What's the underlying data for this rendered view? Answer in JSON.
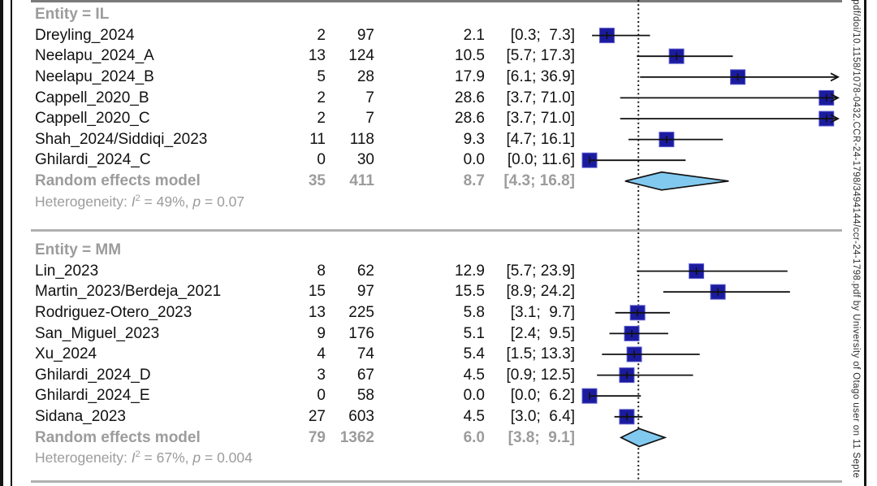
{
  "watermark": "-pdf/doi/10.1158/1078-0432.CCR-24-1798/3494144/ccr-24-1798.pdf by University of Otago user on 11 Septe",
  "colors": {
    "marker_square": "#1b1b9f",
    "marker_square_edge": "#5c5cd0",
    "diamond_fill": "#82c9f0",
    "diamond_stroke": "#111111",
    "ci_line": "#111111",
    "ref_line": "#1a1a1a",
    "study_text": "#111111",
    "muted_text": "#9c9c9c",
    "separator": "#b0b0b0",
    "separator_top": "#7a7a7a",
    "border": "#141414"
  },
  "chart_data": {
    "type": "scatter",
    "subtype": "forest-plot-of-proportions",
    "title": "",
    "xlabel": "",
    "xlim": [
      0,
      30
    ],
    "ref_line_x": 5.9,
    "grid": false,
    "legend": false,
    "columns": [
      "study",
      "events",
      "total",
      "estimate_percent",
      "95_percent_CI"
    ],
    "groups": [
      {
        "header": "Entity = IL",
        "studies": [
          {
            "name": "Dreyling_2024",
            "events": 2,
            "total": 97,
            "estimate": 2.1,
            "ci_low": 0.3,
            "ci_high": 7.3,
            "estimate_text": "2.1",
            "ci_text": "[0.3;  7.3]"
          },
          {
            "name": "Neelapu_2024_A",
            "events": 13,
            "total": 124,
            "estimate": 10.5,
            "ci_low": 5.7,
            "ci_high": 17.3,
            "estimate_text": "10.5",
            "ci_text": "[5.7; 17.3]"
          },
          {
            "name": "Neelapu_2024_B",
            "events": 5,
            "total": 28,
            "estimate": 17.9,
            "ci_low": 6.1,
            "ci_high": 36.9,
            "estimate_text": "17.9",
            "ci_text": "[6.1; 36.9]"
          },
          {
            "name": "Cappell_2020_B",
            "events": 2,
            "total": 7,
            "estimate": 28.6,
            "ci_low": 3.7,
            "ci_high": 71.0,
            "estimate_text": "28.6",
            "ci_text": "[3.7; 71.0]"
          },
          {
            "name": "Cappell_2020_C",
            "events": 2,
            "total": 7,
            "estimate": 28.6,
            "ci_low": 3.7,
            "ci_high": 71.0,
            "estimate_text": "28.6",
            "ci_text": "[3.7; 71.0]"
          },
          {
            "name": "Shah_2024/Siddiqi_2023",
            "events": 11,
            "total": 118,
            "estimate": 9.3,
            "ci_low": 4.7,
            "ci_high": 16.1,
            "estimate_text": "9.3",
            "ci_text": "[4.7; 16.1]"
          },
          {
            "name": "Ghilardi_2024_C",
            "events": 0,
            "total": 30,
            "estimate": 0.0,
            "ci_low": 0.0,
            "ci_high": 11.6,
            "estimate_text": "0.0",
            "ci_text": "[0.0; 11.6]"
          }
        ],
        "summary": {
          "name": "Random effects model",
          "events": 35,
          "total": 411,
          "estimate": 8.7,
          "ci_low": 4.3,
          "ci_high": 16.8,
          "estimate_text": "8.7",
          "ci_text": "[4.3; 16.8]"
        },
        "heterogeneity": [
          {
            "t": "text",
            "v": "Heterogeneity: "
          },
          {
            "t": "i",
            "v": "I"
          },
          {
            "t": "sup",
            "v": "2"
          },
          {
            "t": "text",
            "v": " = 49%, "
          },
          {
            "t": "i",
            "v": "p"
          },
          {
            "t": "text",
            "v": " = 0.07"
          }
        ]
      },
      {
        "header": "Entity = MM",
        "studies": [
          {
            "name": "Lin_2023",
            "events": 8,
            "total": 62,
            "estimate": 12.9,
            "ci_low": 5.7,
            "ci_high": 23.9,
            "estimate_text": "12.9",
            "ci_text": "[5.7; 23.9]"
          },
          {
            "name": "Martin_2023/Berdeja_2021",
            "events": 15,
            "total": 97,
            "estimate": 15.5,
            "ci_low": 8.9,
            "ci_high": 24.2,
            "estimate_text": "15.5",
            "ci_text": "[8.9; 24.2]"
          },
          {
            "name": "Rodriguez-Otero_2023",
            "events": 13,
            "total": 225,
            "estimate": 5.8,
            "ci_low": 3.1,
            "ci_high": 9.7,
            "estimate_text": "5.8",
            "ci_text": "[3.1;  9.7]"
          },
          {
            "name": "San_Miguel_2023",
            "events": 9,
            "total": 176,
            "estimate": 5.1,
            "ci_low": 2.4,
            "ci_high": 9.5,
            "estimate_text": "5.1",
            "ci_text": "[2.4;  9.5]"
          },
          {
            "name": "Xu_2024",
            "events": 4,
            "total": 74,
            "estimate": 5.4,
            "ci_low": 1.5,
            "ci_high": 13.3,
            "estimate_text": "5.4",
            "ci_text": "[1.5; 13.3]"
          },
          {
            "name": "Ghilardi_2024_D",
            "events": 3,
            "total": 67,
            "estimate": 4.5,
            "ci_low": 0.9,
            "ci_high": 12.5,
            "estimate_text": "4.5",
            "ci_text": "[0.9; 12.5]"
          },
          {
            "name": "Ghilardi_2024_E",
            "events": 0,
            "total": 58,
            "estimate": 0.0,
            "ci_low": 0.0,
            "ci_high": 6.2,
            "estimate_text": "0.0",
            "ci_text": "[0.0;  6.2]"
          },
          {
            "name": "Sidana_2023",
            "events": 27,
            "total": 603,
            "estimate": 4.5,
            "ci_low": 3.0,
            "ci_high": 6.4,
            "estimate_text": "4.5",
            "ci_text": "[3.0;  6.4]"
          }
        ],
        "summary": {
          "name": "Random effects model",
          "events": 79,
          "total": 1362,
          "estimate": 6.0,
          "ci_low": 3.8,
          "ci_high": 9.1,
          "estimate_text": "6.0",
          "ci_text": "[3.8;  9.1]"
        },
        "heterogeneity": [
          {
            "t": "text",
            "v": "Heterogeneity: "
          },
          {
            "t": "i",
            "v": "I"
          },
          {
            "t": "sup",
            "v": "2"
          },
          {
            "t": "text",
            "v": " = 67%, "
          },
          {
            "t": "i",
            "v": "p"
          },
          {
            "t": "text",
            "v": " = 0.004"
          }
        ]
      }
    ]
  }
}
